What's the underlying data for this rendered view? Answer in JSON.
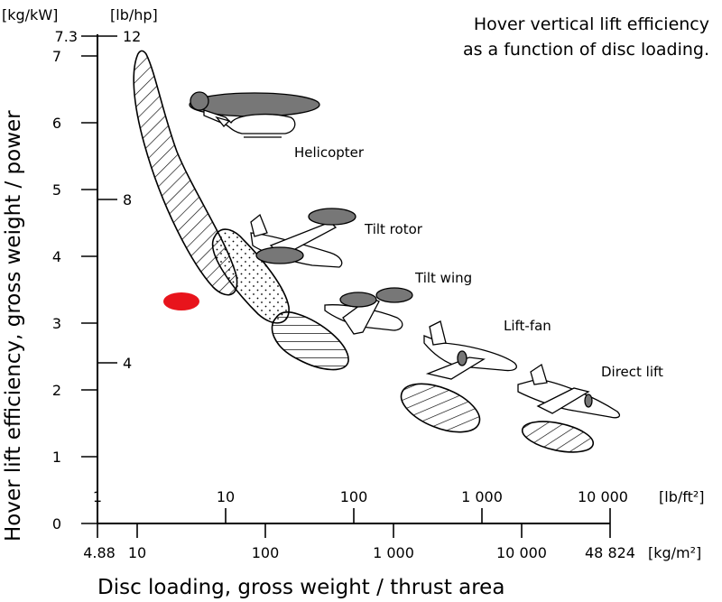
{
  "chart_data": {
    "type": "scatter",
    "title_lines": [
      "Hover vertical lift efficiency",
      "as a function of disc loading."
    ],
    "ylabel": "Hover lift efficiency, gross weight / power",
    "xlabel": "Disc loading, gross weight / thrust area",
    "y_axis": {
      "unit_primary": "[kg/kW]",
      "unit_secondary": "[lb/hp]",
      "range": [
        0,
        7.3
      ],
      "primary_ticks": [
        "0",
        "1",
        "2",
        "3",
        "4",
        "5",
        "6",
        "7",
        "7.3"
      ],
      "secondary_ticks": [
        "4",
        "8",
        "12"
      ]
    },
    "x_axis": {
      "unit_upper": "[lb/ft²]",
      "unit_lower": "[kg/m²]",
      "upper_ticks": [
        "1",
        "10",
        "100",
        "1 000",
        "10 000"
      ],
      "lower_ticks": [
        "4.88",
        "10",
        "100",
        "1 000",
        "10 000",
        "48 824"
      ],
      "scale": "log"
    },
    "categories": [
      {
        "name": "Helicopter",
        "disc_loading_lb_ft2": [
          1.5,
          20
        ],
        "efficiency_kg_kw": [
          2.8,
          7.0
        ],
        "fill": "diagonal-hatch"
      },
      {
        "name": "Tilt rotor",
        "disc_loading_lb_ft2": [
          7,
          23
        ],
        "efficiency_kg_kw": [
          3.0,
          4.4
        ],
        "fill": "dots"
      },
      {
        "name": "Tilt wing",
        "disc_loading_lb_ft2": [
          12,
          50
        ],
        "efficiency_kg_kw": [
          2.4,
          3.2
        ],
        "fill": "horizontal-hatch"
      },
      {
        "name": "Lift-fan",
        "disc_loading_lb_ft2": [
          130,
          600
        ],
        "efficiency_kg_kw": [
          1.3,
          2.1
        ],
        "fill": "diagonal-hatch"
      },
      {
        "name": "Direct lift",
        "disc_loading_lb_ft2": [
          1200,
          5000
        ],
        "efficiency_kg_kw": [
          1.1,
          1.5
        ],
        "fill": "diagonal-hatch"
      }
    ],
    "highlight_point": {
      "disc_loading_lb_ft2": 3.5,
      "efficiency_kg_kw": 3.3,
      "color": "#e8141c"
    },
    "grid": false,
    "legend": "none"
  }
}
